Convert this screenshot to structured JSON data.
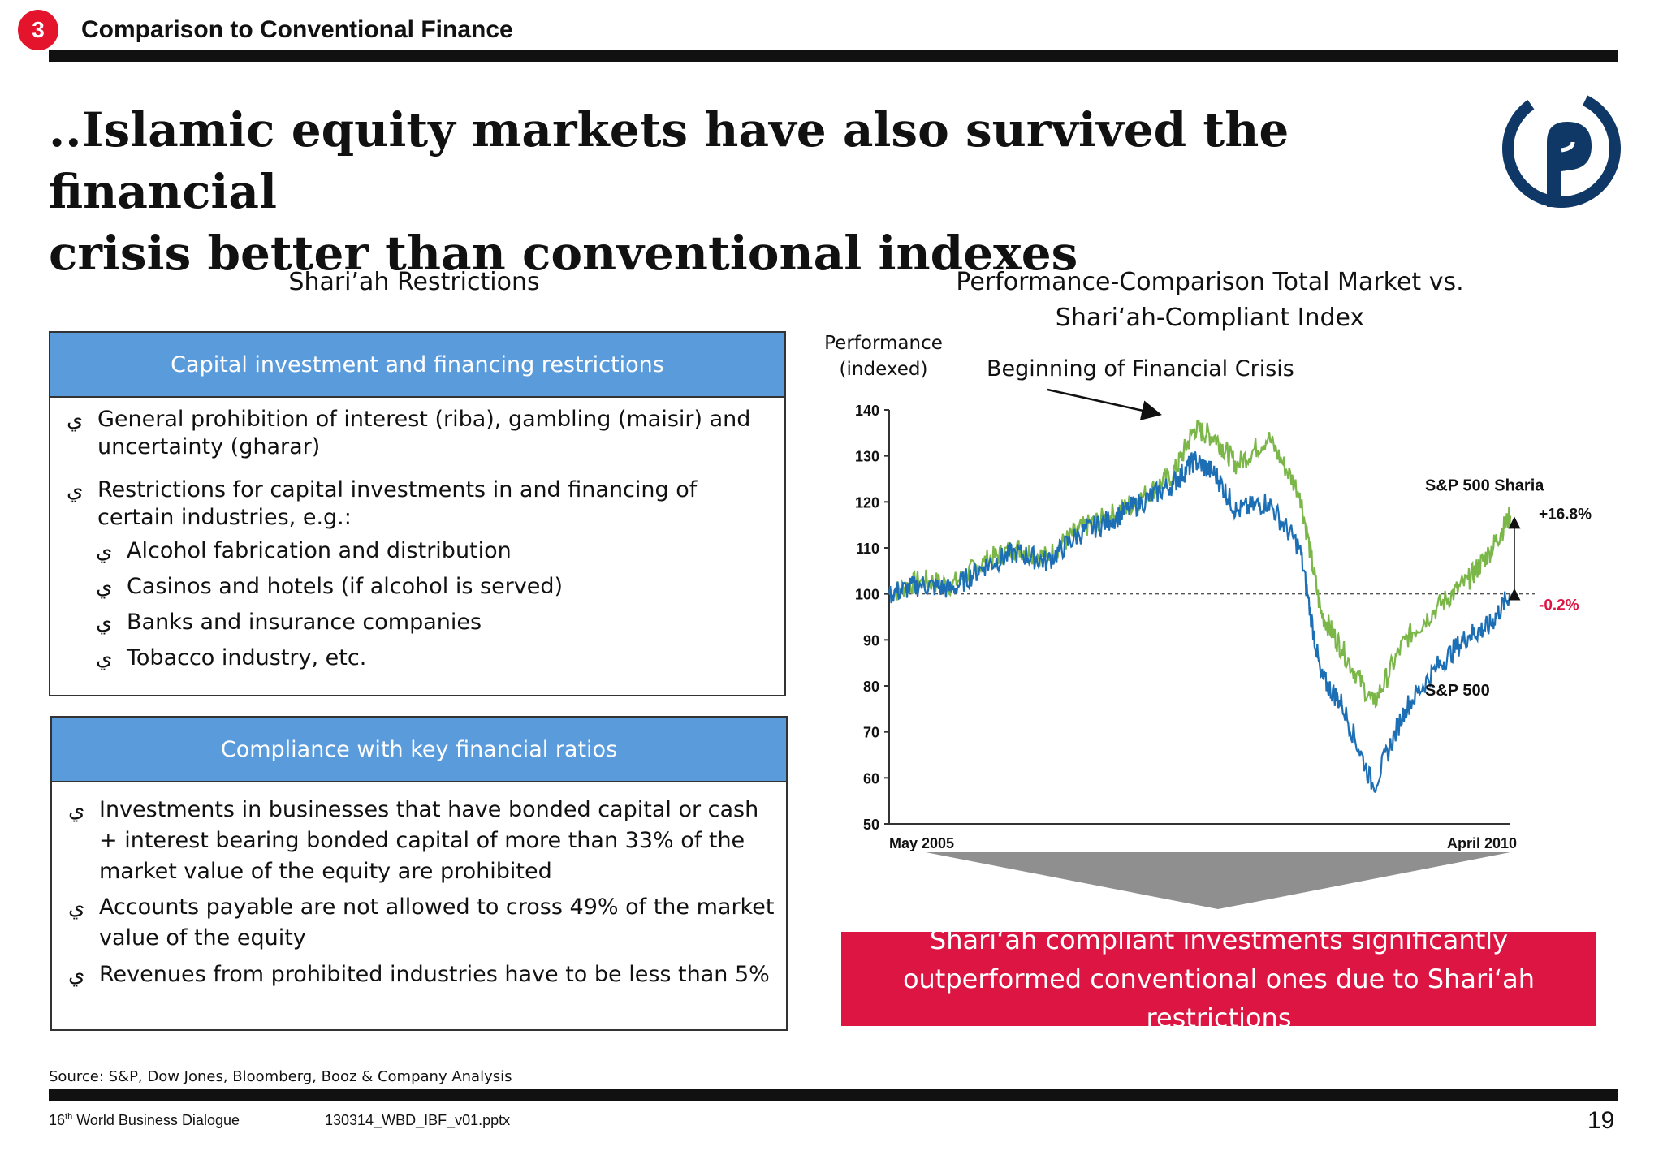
{
  "header": {
    "section_number": "3",
    "section_title": "Comparison to Conventional Finance"
  },
  "title": {
    "line1": "..Islamic equity markets have also survived the financial",
    "line2": "crisis better than conventional indexes"
  },
  "left": {
    "heading": "Shari’ah Restrictions",
    "bullet_marker": "ي",
    "box1": {
      "header": "Capital investment and financing restrictions",
      "items": [
        {
          "text": "General prohibition of interest (riba), gambling (maisir) and uncertainty (gharar)"
        },
        {
          "text": "Restrictions for capital investments in and financing of certain industries, e.g.:"
        }
      ],
      "sub_items": [
        {
          "text": "Alcohol fabrication and distribution"
        },
        {
          "text": "Casinos and hotels (if alcohol is served)"
        },
        {
          "text": "Banks and insurance companies"
        },
        {
          "text": "Tobacco industry, etc."
        }
      ]
    },
    "box2": {
      "header": "Compliance with key financial ratios",
      "items": [
        {
          "text": "Investments in businesses that have bonded capital or cash + interest bearing bonded capital of more than 33% of the market value of the equity are prohibited"
        },
        {
          "text": "Accounts payable are not allowed to cross 49% of the market value of the equity"
        },
        {
          "text": "Revenues from prohibited industries have to be less than 5%"
        }
      ]
    }
  },
  "right": {
    "heading_line1": "Performance-Comparison Total Market vs.",
    "heading_line2": "Shari‘ah-Compliant Index",
    "callout": "Shari‘ah compliant investments significantly outperformed conventional ones due to Shari‘ah restrictions"
  },
  "chart_data": {
    "type": "line",
    "ylabel_line1": "Performance",
    "ylabel_line2": "(indexed)",
    "ylim": [
      50,
      140
    ],
    "yticks": [
      "140",
      "130",
      "120",
      "110",
      "100",
      "90",
      "80",
      "70",
      "60",
      "50"
    ],
    "x_start_label": "May 2005",
    "x_end_label": "April 2010",
    "x_range": [
      "2005-05",
      "2010-04"
    ],
    "reference_line": 100,
    "annotation": "Beginning of Financial Crisis",
    "annotation_at": "2007-10",
    "series": [
      {
        "name": "S&P 500 Sharia",
        "color": "#7ab648",
        "end_label": "+16.8%",
        "end_label_color": "#111111",
        "x": [
          "2005-05",
          "2005-08",
          "2005-11",
          "2006-02",
          "2006-05",
          "2006-08",
          "2006-11",
          "2007-02",
          "2007-05",
          "2007-08",
          "2007-10",
          "2007-12",
          "2008-02",
          "2008-05",
          "2008-08",
          "2008-10",
          "2008-12",
          "2009-03",
          "2009-06",
          "2009-09",
          "2009-12",
          "2010-02",
          "2010-04"
        ],
        "values": [
          100,
          103,
          102,
          107,
          110,
          108,
          114,
          117,
          121,
          126,
          136,
          134,
          128,
          134,
          122,
          96,
          88,
          76,
          90,
          97,
          103,
          109,
          117
        ]
      },
      {
        "name": "S&P 500",
        "color": "#1c6fb5",
        "end_label": "-0.2%",
        "end_label_color": "#dc1543",
        "x": [
          "2005-05",
          "2005-08",
          "2005-11",
          "2006-02",
          "2006-05",
          "2006-08",
          "2006-11",
          "2007-02",
          "2007-05",
          "2007-08",
          "2007-10",
          "2007-12",
          "2008-02",
          "2008-05",
          "2008-08",
          "2008-10",
          "2008-12",
          "2009-03",
          "2009-06",
          "2009-09",
          "2009-12",
          "2010-02",
          "2010-04"
        ],
        "values": [
          100,
          102,
          101,
          106,
          109,
          107,
          113,
          116,
          120,
          124,
          129,
          126,
          118,
          120,
          110,
          82,
          76,
          58,
          75,
          84,
          91,
          93,
          100
        ]
      }
    ]
  },
  "source": "Source: S&P, Dow Jones, Bloomberg, Booz & Company Analysis",
  "footer": {
    "event_prefix": "16",
    "event_sup": "th",
    "event_rest": " World Business Dialogue",
    "file": "130314_WBD_IBF_v01.pptx",
    "page": "19"
  }
}
